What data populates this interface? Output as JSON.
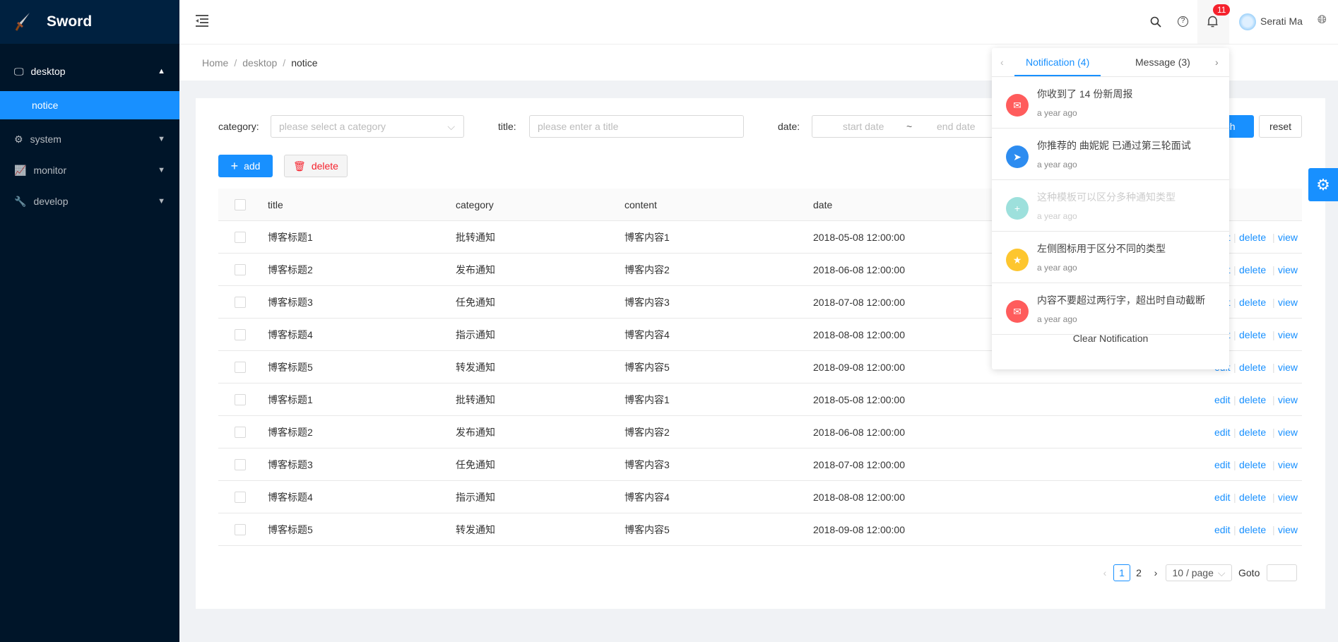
{
  "app": {
    "name": "Sword"
  },
  "sidebar": {
    "items": [
      {
        "label": "desktop",
        "icon": "desktop-icon",
        "expanded": true
      },
      {
        "label": "notice",
        "active": true
      },
      {
        "label": "system",
        "icon": "gear-icon"
      },
      {
        "label": "monitor",
        "icon": "line-chart-icon"
      },
      {
        "label": "develop",
        "icon": "wrench-icon"
      }
    ]
  },
  "header": {
    "user": "Serati Ma",
    "badge": "11"
  },
  "breadcrumb": [
    "Home",
    "desktop",
    "notice"
  ],
  "filters": {
    "category_label": "category:",
    "category_placeholder": "please select a category",
    "title_label": "title:",
    "title_placeholder": "please enter a title",
    "date_label": "date:",
    "start_placeholder": "start date",
    "range_sep": "~",
    "end_placeholder": "end date",
    "search": "search",
    "reset": "reset"
  },
  "toolbar": {
    "add": "add",
    "delete": "delete"
  },
  "table": {
    "columns": [
      "title",
      "category",
      "content",
      "date"
    ],
    "actions": [
      "edit",
      "delete",
      "view"
    ],
    "rows": [
      [
        "博客标题1",
        "批转通知",
        "博客内容1",
        "2018-05-08 12:00:00"
      ],
      [
        "博客标题2",
        "发布通知",
        "博客内容2",
        "2018-06-08 12:00:00"
      ],
      [
        "博客标题3",
        "任免通知",
        "博客内容3",
        "2018-07-08 12:00:00"
      ],
      [
        "博客标题4",
        "指示通知",
        "博客内容4",
        "2018-08-08 12:00:00"
      ],
      [
        "博客标题5",
        "转发通知",
        "博客内容5",
        "2018-09-08 12:00:00"
      ],
      [
        "博客标题1",
        "批转通知",
        "博客内容1",
        "2018-05-08 12:00:00"
      ],
      [
        "博客标题2",
        "发布通知",
        "博客内容2",
        "2018-06-08 12:00:00"
      ],
      [
        "博客标题3",
        "任免通知",
        "博客内容3",
        "2018-07-08 12:00:00"
      ],
      [
        "博客标题4",
        "指示通知",
        "博客内容4",
        "2018-08-08 12:00:00"
      ],
      [
        "博客标题5",
        "转发通知",
        "博客内容5",
        "2018-09-08 12:00:00"
      ]
    ]
  },
  "pagination": {
    "pages": [
      "1",
      "2"
    ],
    "current": "1",
    "page_size": "10 / page",
    "goto": "Goto"
  },
  "notifications": {
    "tabs": [
      "Notification (4)",
      "Message (3)"
    ],
    "items": [
      {
        "title": "你收到了 14 份新周报",
        "time": "a year ago",
        "icon": "mail-icon",
        "color": "#ff5c5c"
      },
      {
        "title": "你推荐的 曲妮妮 已通过第三轮面试",
        "time": "a year ago",
        "icon": "send-icon",
        "color": "#2d8cf0"
      },
      {
        "title": "这种模板可以区分多种通知类型",
        "time": "a year ago",
        "icon": "plus-icon",
        "color": "#9de0dc",
        "read": true
      },
      {
        "title": "左侧图标用于区分不同的类型",
        "time": "a year ago",
        "icon": "star-icon",
        "color": "#fdc62f"
      },
      {
        "title": "内容不要超过两行字，超出时自动截断",
        "time": "a year ago",
        "icon": "mail-icon",
        "color": "#ff5c5c"
      }
    ],
    "clear": "Clear Notification"
  },
  "colors": {
    "primary": "#1890ff",
    "sidebar": "#001529",
    "danger": "#f5222d"
  }
}
